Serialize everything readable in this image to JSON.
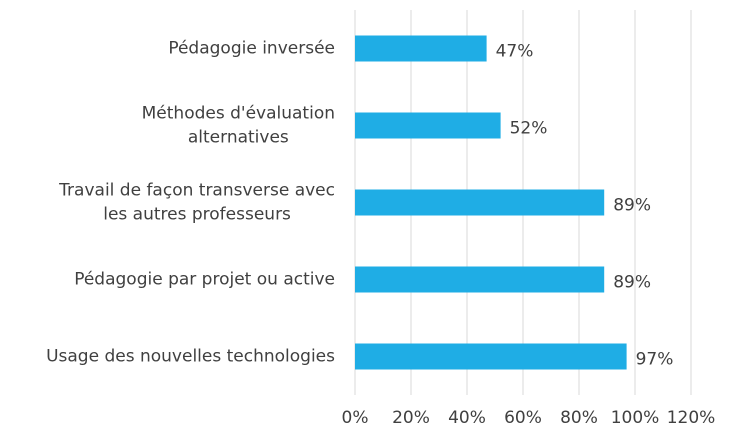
{
  "chart_data": {
    "type": "bar",
    "orientation": "horizontal",
    "categories": [
      "Pédagogie inversée",
      "Méthodes d'évaluation\nalternatives",
      "Travail de façon transverse avec\nles autres professeurs",
      "Pédagogie par projet ou active",
      "Usage des nouvelles technologies"
    ],
    "values": [
      47,
      52,
      89,
      89,
      97
    ],
    "value_labels": [
      "47%",
      "52%",
      "89%",
      "89%",
      "97%"
    ],
    "color": "#1fade5",
    "xlim": [
      0,
      120
    ],
    "xticks": [
      {
        "value": 0,
        "label": "0%"
      },
      {
        "value": 20,
        "label": "20%"
      },
      {
        "value": 40,
        "label": "40%"
      },
      {
        "value": 60,
        "label": "60%"
      },
      {
        "value": 80,
        "label": "80%"
      },
      {
        "value": 100,
        "label": "100%"
      },
      {
        "value": 120,
        "label": "120%"
      }
    ],
    "grid": true
  }
}
